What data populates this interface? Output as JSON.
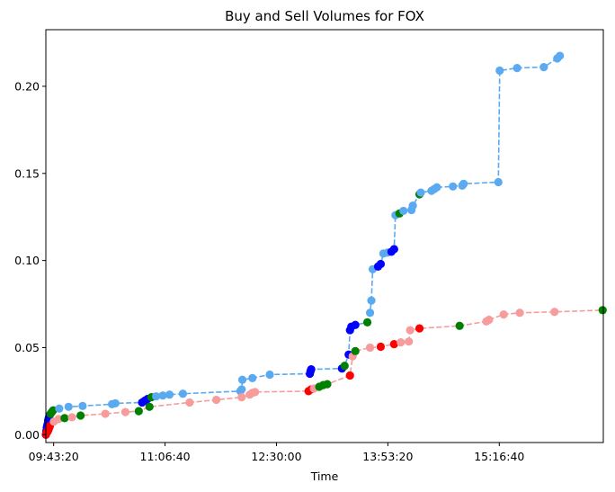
{
  "chart_data": {
    "type": "line",
    "title": "Buy and Sell Volumes for FOX",
    "xlabel": "Time",
    "ylabel": "",
    "x_is_time_seconds_of_day": true,
    "xlim": [
      "09:37:30",
      "16:34:30"
    ],
    "ylim": [
      -0.0045,
      0.2325
    ],
    "x_ticks": [
      "09:43:20",
      "11:06:40",
      "12:30:00",
      "13:53:20",
      "15:16:40"
    ],
    "y_ticks": [
      "0.00",
      "0.05",
      "0.10",
      "0.15",
      "0.20"
    ],
    "grid": false,
    "colors": {
      "buy_line": "#5aaaf2",
      "sell_line": "#f79c9c",
      "blue_marker": "#0000ff",
      "red_marker": "#ff0000",
      "green_marker": "#008000"
    },
    "series": [
      {
        "line_color": "#5aaaf2",
        "points": [
          {
            "x": "09:37:33",
            "y": 0.0,
            "c": "blue"
          },
          {
            "x": "09:37:50",
            "y": 0.002,
            "c": "blue"
          },
          {
            "x": "09:38:10",
            "y": 0.004,
            "c": "blue"
          },
          {
            "x": "09:38:30",
            "y": 0.005,
            "c": "blue"
          },
          {
            "x": "09:38:50",
            "y": 0.006,
            "c": "blue"
          },
          {
            "x": "09:39:10",
            "y": 0.008,
            "c": "blue"
          },
          {
            "x": "09:39:30",
            "y": 0.009,
            "c": "blue"
          },
          {
            "x": "09:39:50",
            "y": 0.01,
            "c": "blue"
          },
          {
            "x": "09:40:10",
            "y": 0.011,
            "c": "blue"
          },
          {
            "x": "09:41:00",
            "y": 0.012,
            "c": "green"
          },
          {
            "x": "09:42:00",
            "y": 0.013,
            "c": "green"
          },
          {
            "x": "09:43:00",
            "y": 0.014,
            "c": "green"
          },
          {
            "x": "09:47:30",
            "y": 0.015,
            "c": "light"
          },
          {
            "x": "09:54:30",
            "y": 0.016,
            "c": "light"
          },
          {
            "x": "10:05:00",
            "y": 0.0165,
            "c": "light"
          },
          {
            "x": "10:27:00",
            "y": 0.0175,
            "c": "light"
          },
          {
            "x": "10:29:30",
            "y": 0.018,
            "c": "light"
          },
          {
            "x": "10:49:30",
            "y": 0.0185,
            "c": "blue"
          },
          {
            "x": "10:51:30",
            "y": 0.0195,
            "c": "blue"
          },
          {
            "x": "10:53:30",
            "y": 0.0205,
            "c": "blue"
          },
          {
            "x": "10:56:30",
            "y": 0.0215,
            "c": "green"
          },
          {
            "x": "11:00:00",
            "y": 0.022,
            "c": "light"
          },
          {
            "x": "11:05:00",
            "y": 0.0225,
            "c": "light"
          },
          {
            "x": "11:10:00",
            "y": 0.023,
            "c": "light"
          },
          {
            "x": "11:20:00",
            "y": 0.0235,
            "c": "light"
          },
          {
            "x": "12:03:00",
            "y": 0.025,
            "c": "light"
          },
          {
            "x": "12:04:00",
            "y": 0.026,
            "c": "light"
          },
          {
            "x": "12:04:30",
            "y": 0.0315,
            "c": "light"
          },
          {
            "x": "12:12:00",
            "y": 0.0325,
            "c": "light"
          },
          {
            "x": "12:25:00",
            "y": 0.0345,
            "c": "light"
          },
          {
            "x": "12:55:00",
            "y": 0.035,
            "c": "blue"
          },
          {
            "x": "12:55:30",
            "y": 0.0365,
            "c": "blue"
          },
          {
            "x": "12:56:00",
            "y": 0.0375,
            "c": "blue"
          },
          {
            "x": "13:19:00",
            "y": 0.038,
            "c": "blue"
          },
          {
            "x": "13:21:00",
            "y": 0.0395,
            "c": "green"
          },
          {
            "x": "13:24:00",
            "y": 0.046,
            "c": "blue"
          },
          {
            "x": "13:25:00",
            "y": 0.06,
            "c": "blue"
          },
          {
            "x": "13:26:00",
            "y": 0.062,
            "c": "blue"
          },
          {
            "x": "13:29:00",
            "y": 0.063,
            "c": "blue"
          },
          {
            "x": "13:38:00",
            "y": 0.0645,
            "c": "green"
          },
          {
            "x": "13:40:00",
            "y": 0.07,
            "c": "light"
          },
          {
            "x": "13:41:00",
            "y": 0.077,
            "c": "light"
          },
          {
            "x": "13:42:00",
            "y": 0.095,
            "c": "light"
          },
          {
            "x": "13:46:00",
            "y": 0.0965,
            "c": "blue"
          },
          {
            "x": "13:48:00",
            "y": 0.098,
            "c": "blue"
          },
          {
            "x": "13:50:00",
            "y": 0.104,
            "c": "light"
          },
          {
            "x": "13:53:00",
            "y": 0.1045,
            "c": "light"
          },
          {
            "x": "13:56:00",
            "y": 0.105,
            "c": "blue"
          },
          {
            "x": "13:58:00",
            "y": 0.1065,
            "c": "blue"
          },
          {
            "x": "13:59:00",
            "y": 0.126,
            "c": "light"
          },
          {
            "x": "14:02:00",
            "y": 0.127,
            "c": "green"
          },
          {
            "x": "14:05:00",
            "y": 0.1285,
            "c": "light"
          },
          {
            "x": "14:11:00",
            "y": 0.129,
            "c": "light"
          },
          {
            "x": "14:12:00",
            "y": 0.1315,
            "c": "light"
          },
          {
            "x": "14:17:00",
            "y": 0.138,
            "c": "green"
          },
          {
            "x": "14:18:00",
            "y": 0.139,
            "c": "light"
          },
          {
            "x": "14:26:00",
            "y": 0.14,
            "c": "light"
          },
          {
            "x": "14:28:00",
            "y": 0.141,
            "c": "light"
          },
          {
            "x": "14:30:00",
            "y": 0.142,
            "c": "light"
          },
          {
            "x": "14:42:00",
            "y": 0.1425,
            "c": "light"
          },
          {
            "x": "14:49:00",
            "y": 0.143,
            "c": "light"
          },
          {
            "x": "14:50:00",
            "y": 0.144,
            "c": "light"
          },
          {
            "x": "15:16:00",
            "y": 0.145,
            "c": "light"
          },
          {
            "x": "15:17:00",
            "y": 0.209,
            "c": "light"
          },
          {
            "x": "15:30:00",
            "y": 0.2105,
            "c": "light"
          },
          {
            "x": "15:50:00",
            "y": 0.211,
            "c": "light"
          },
          {
            "x": "16:00:00",
            "y": 0.216,
            "c": "light"
          },
          {
            "x": "16:02:00",
            "y": 0.2175,
            "c": "light"
          }
        ]
      },
      {
        "line_color": "#f79c9c",
        "points": [
          {
            "x": "09:37:33",
            "y": 0.0,
            "c": "red"
          },
          {
            "x": "09:38:00",
            "y": 0.001,
            "c": "red"
          },
          {
            "x": "09:38:30",
            "y": 0.0015,
            "c": "red"
          },
          {
            "x": "09:39:00",
            "y": 0.002,
            "c": "red"
          },
          {
            "x": "09:39:30",
            "y": 0.003,
            "c": "red"
          },
          {
            "x": "09:40:00",
            "y": 0.004,
            "c": "red"
          },
          {
            "x": "09:40:30",
            "y": 0.005,
            "c": "red"
          },
          {
            "x": "09:43:30",
            "y": 0.0075,
            "c": "light"
          },
          {
            "x": "09:47:00",
            "y": 0.009,
            "c": "light"
          },
          {
            "x": "09:51:30",
            "y": 0.0095,
            "c": "green"
          },
          {
            "x": "09:57:00",
            "y": 0.01,
            "c": "light"
          },
          {
            "x": "10:03:30",
            "y": 0.011,
            "c": "green"
          },
          {
            "x": "10:22:00",
            "y": 0.012,
            "c": "light"
          },
          {
            "x": "10:37:00",
            "y": 0.013,
            "c": "light"
          },
          {
            "x": "10:47:00",
            "y": 0.0135,
            "c": "green"
          },
          {
            "x": "10:55:00",
            "y": 0.016,
            "c": "green"
          },
          {
            "x": "11:25:00",
            "y": 0.0185,
            "c": "light"
          },
          {
            "x": "11:45:00",
            "y": 0.02,
            "c": "light"
          },
          {
            "x": "12:04:00",
            "y": 0.0215,
            "c": "light"
          },
          {
            "x": "12:10:00",
            "y": 0.023,
            "c": "light"
          },
          {
            "x": "12:12:00",
            "y": 0.024,
            "c": "light"
          },
          {
            "x": "12:14:00",
            "y": 0.0245,
            "c": "light"
          },
          {
            "x": "12:54:00",
            "y": 0.025,
            "c": "red"
          },
          {
            "x": "12:56:00",
            "y": 0.026,
            "c": "red"
          },
          {
            "x": "12:58:00",
            "y": 0.0265,
            "c": "light"
          },
          {
            "x": "13:02:00",
            "y": 0.0275,
            "c": "green"
          },
          {
            "x": "13:05:00",
            "y": 0.0285,
            "c": "green"
          },
          {
            "x": "13:08:00",
            "y": 0.029,
            "c": "green"
          },
          {
            "x": "13:25:00",
            "y": 0.034,
            "c": "red"
          },
          {
            "x": "13:27:00",
            "y": 0.045,
            "c": "light"
          },
          {
            "x": "13:29:00",
            "y": 0.048,
            "c": "green"
          },
          {
            "x": "13:40:00",
            "y": 0.05,
            "c": "light"
          },
          {
            "x": "13:48:00",
            "y": 0.0505,
            "c": "red"
          },
          {
            "x": "13:58:00",
            "y": 0.052,
            "c": "red"
          },
          {
            "x": "14:03:00",
            "y": 0.053,
            "c": "light"
          },
          {
            "x": "14:09:00",
            "y": 0.0535,
            "c": "light"
          },
          {
            "x": "14:10:00",
            "y": 0.06,
            "c": "light"
          },
          {
            "x": "14:17:00",
            "y": 0.061,
            "c": "red"
          },
          {
            "x": "14:47:00",
            "y": 0.0625,
            "c": "green"
          },
          {
            "x": "15:07:00",
            "y": 0.065,
            "c": "light"
          },
          {
            "x": "15:09:00",
            "y": 0.066,
            "c": "light"
          },
          {
            "x": "15:20:00",
            "y": 0.069,
            "c": "light"
          },
          {
            "x": "15:32:00",
            "y": 0.07,
            "c": "light"
          },
          {
            "x": "15:58:00",
            "y": 0.0705,
            "c": "light"
          },
          {
            "x": "16:34:00",
            "y": 0.0715,
            "c": "green"
          }
        ]
      }
    ]
  }
}
